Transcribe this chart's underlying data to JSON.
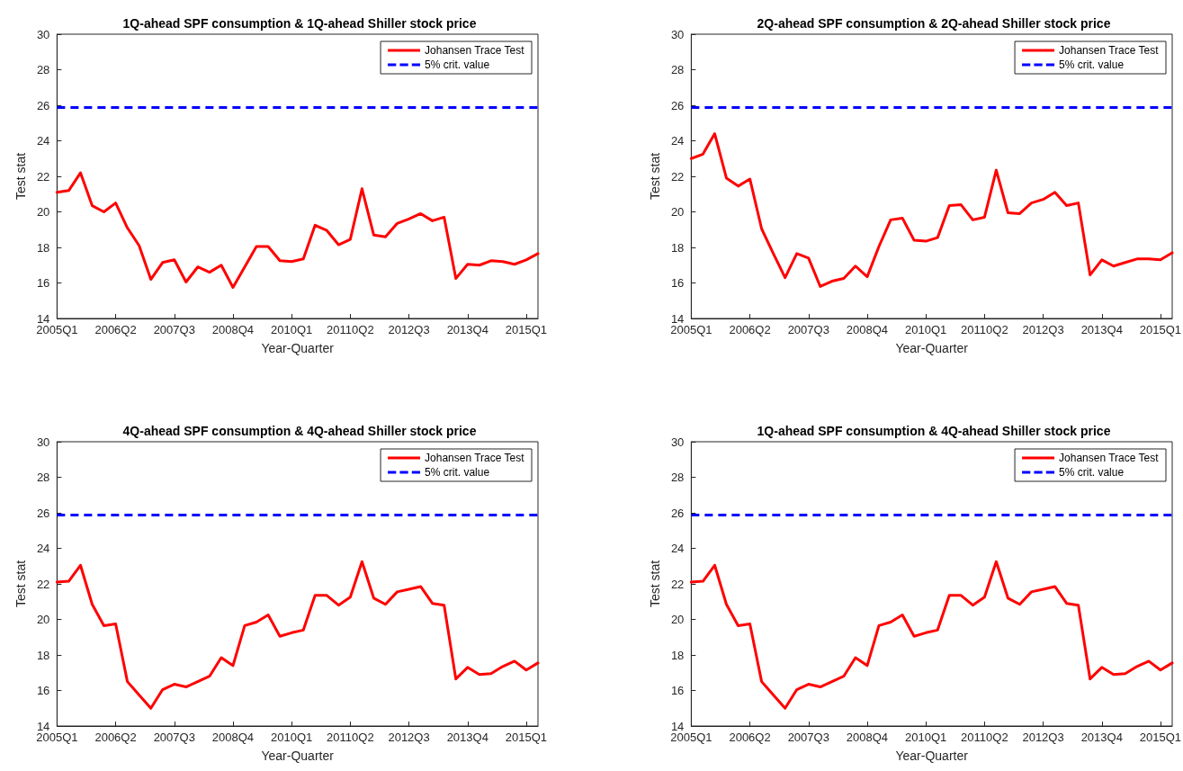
{
  "chart_data": [
    {
      "type": "line",
      "title": "1Q-ahead SPF consumption & 1Q-ahead Shiller stock price",
      "xlabel": "Year-Quarter",
      "ylabel": "Test stat",
      "ylim": [
        14,
        30
      ],
      "yticks": [
        14,
        16,
        18,
        20,
        22,
        24,
        26,
        28,
        30
      ],
      "grid": false,
      "legend": "top right",
      "categories": [
        "2005Q1",
        null,
        null,
        null,
        null,
        "2006Q2",
        null,
        null,
        null,
        null,
        "2007Q3",
        null,
        null,
        null,
        null,
        "2008Q4",
        null,
        null,
        null,
        null,
        "2010Q1",
        null,
        null,
        null,
        null,
        "20110Q2",
        null,
        null,
        null,
        null,
        "2012Q3",
        null,
        null,
        null,
        null,
        "2013Q4",
        null,
        null,
        null,
        null,
        "2015Q1",
        null
      ],
      "series": [
        {
          "name": "Johansen Trace Test",
          "color": "#ff0000",
          "line_style": "solid",
          "values": [
            21.1,
            21.2,
            22.2,
            20.35,
            20.0,
            20.5,
            19.1,
            18.1,
            16.2,
            17.15,
            17.3,
            16.05,
            16.9,
            16.6,
            17.0,
            15.75,
            16.9,
            18.05,
            18.05,
            17.25,
            17.2,
            17.35,
            19.25,
            18.95,
            18.15,
            18.45,
            21.3,
            18.7,
            18.6,
            19.35,
            19.6,
            19.9,
            19.5,
            19.7,
            16.25,
            17.05,
            17.0,
            17.25,
            17.2,
            17.05,
            17.3,
            17.65
          ]
        },
        {
          "name": "5% crit. value",
          "color": "#0000ff",
          "line_style": "dashed",
          "values": [
            25.87,
            25.87,
            25.87,
            25.87,
            25.87,
            25.87,
            25.87,
            25.87,
            25.87,
            25.87,
            25.87,
            25.87,
            25.87,
            25.87,
            25.87,
            25.87,
            25.87,
            25.87,
            25.87,
            25.87,
            25.87,
            25.87,
            25.87,
            25.87,
            25.87,
            25.87,
            25.87,
            25.87,
            25.87,
            25.87,
            25.87,
            25.87,
            25.87,
            25.87,
            25.87,
            25.87,
            25.87,
            25.87,
            25.87,
            25.87,
            25.87,
            25.87
          ]
        }
      ]
    },
    {
      "type": "line",
      "title": "2Q-ahead SPF consumption & 2Q-ahead Shiller stock price",
      "xlabel": "Year-Quarter",
      "ylabel": "Test stat",
      "ylim": [
        14,
        30
      ],
      "yticks": [
        14,
        16,
        18,
        20,
        22,
        24,
        26,
        28,
        30
      ],
      "grid": false,
      "legend": "top right",
      "categories": [
        "2005Q1",
        null,
        null,
        null,
        null,
        "2006Q2",
        null,
        null,
        null,
        null,
        "2007Q3",
        null,
        null,
        null,
        null,
        "2008Q4",
        null,
        null,
        null,
        null,
        "2010Q1",
        null,
        null,
        null,
        null,
        "20110Q2",
        null,
        null,
        null,
        null,
        "2012Q3",
        null,
        null,
        null,
        null,
        "2013Q4",
        null,
        null,
        null,
        null,
        "2015Q1",
        null
      ],
      "series": [
        {
          "name": "Johansen Trace Test",
          "color": "#ff0000",
          "line_style": "solid",
          "values": [
            23.0,
            23.25,
            24.4,
            21.9,
            21.45,
            21.85,
            19.05,
            17.65,
            16.3,
            17.65,
            17.4,
            15.8,
            16.1,
            16.25,
            16.95,
            16.35,
            18.05,
            19.55,
            19.65,
            18.4,
            18.35,
            18.55,
            20.35,
            20.4,
            19.55,
            19.7,
            22.35,
            19.95,
            19.9,
            20.5,
            20.7,
            21.1,
            20.35,
            20.5,
            16.45,
            17.3,
            16.95,
            17.15,
            17.35,
            17.35,
            17.3,
            17.7
          ]
        },
        {
          "name": "5% crit. value",
          "color": "#0000ff",
          "line_style": "dashed",
          "values": [
            25.87,
            25.87,
            25.87,
            25.87,
            25.87,
            25.87,
            25.87,
            25.87,
            25.87,
            25.87,
            25.87,
            25.87,
            25.87,
            25.87,
            25.87,
            25.87,
            25.87,
            25.87,
            25.87,
            25.87,
            25.87,
            25.87,
            25.87,
            25.87,
            25.87,
            25.87,
            25.87,
            25.87,
            25.87,
            25.87,
            25.87,
            25.87,
            25.87,
            25.87,
            25.87,
            25.87,
            25.87,
            25.87,
            25.87,
            25.87,
            25.87,
            25.87
          ]
        }
      ]
    },
    {
      "type": "line",
      "title": "4Q-ahead SPF consumption & 4Q-ahead Shiller stock price",
      "xlabel": "Year-Quarter",
      "ylabel": "Test stat",
      "ylim": [
        14,
        30
      ],
      "yticks": [
        14,
        16,
        18,
        20,
        22,
        24,
        26,
        28,
        30
      ],
      "grid": false,
      "legend": "top right",
      "categories": [
        "2005Q1",
        null,
        null,
        null,
        null,
        "2006Q2",
        null,
        null,
        null,
        null,
        "2007Q3",
        null,
        null,
        null,
        null,
        "2008Q4",
        null,
        null,
        null,
        null,
        "2010Q1",
        null,
        null,
        null,
        null,
        "20110Q2",
        null,
        null,
        null,
        null,
        "2012Q3",
        null,
        null,
        null,
        null,
        "2013Q4",
        null,
        null,
        null,
        null,
        "2015Q1",
        null
      ],
      "series": [
        {
          "name": "Johansen Trace Test",
          "color": "#ff0000",
          "line_style": "solid",
          "values": [
            22.1,
            22.15,
            23.05,
            20.85,
            19.65,
            19.75,
            16.5,
            15.75,
            15.0,
            16.05,
            16.35,
            16.2,
            16.5,
            16.8,
            17.85,
            17.4,
            19.65,
            19.85,
            20.25,
            19.05,
            19.25,
            19.4,
            21.35,
            21.35,
            20.8,
            21.25,
            23.25,
            21.2,
            20.85,
            21.55,
            21.7,
            21.85,
            20.9,
            20.8,
            16.65,
            17.3,
            16.9,
            16.95,
            17.35,
            17.65,
            17.15,
            17.55
          ]
        },
        {
          "name": "5% crit. value",
          "color": "#0000ff",
          "line_style": "dashed",
          "values": [
            25.87,
            25.87,
            25.87,
            25.87,
            25.87,
            25.87,
            25.87,
            25.87,
            25.87,
            25.87,
            25.87,
            25.87,
            25.87,
            25.87,
            25.87,
            25.87,
            25.87,
            25.87,
            25.87,
            25.87,
            25.87,
            25.87,
            25.87,
            25.87,
            25.87,
            25.87,
            25.87,
            25.87,
            25.87,
            25.87,
            25.87,
            25.87,
            25.87,
            25.87,
            25.87,
            25.87,
            25.87,
            25.87,
            25.87,
            25.87,
            25.87,
            25.87
          ]
        }
      ]
    },
    {
      "type": "line",
      "title": "1Q-ahead SPF consumption & 4Q-ahead Shiller stock price",
      "xlabel": "Year-Quarter",
      "ylabel": "Test stat",
      "ylim": [
        14,
        30
      ],
      "yticks": [
        14,
        16,
        18,
        20,
        22,
        24,
        26,
        28,
        30
      ],
      "grid": false,
      "legend": "top right",
      "categories": [
        "2005Q1",
        null,
        null,
        null,
        null,
        "2006Q2",
        null,
        null,
        null,
        null,
        "2007Q3",
        null,
        null,
        null,
        null,
        "2008Q4",
        null,
        null,
        null,
        null,
        "2010Q1",
        null,
        null,
        null,
        null,
        "20110Q2",
        null,
        null,
        null,
        null,
        "2012Q3",
        null,
        null,
        null,
        null,
        "2013Q4",
        null,
        null,
        null,
        null,
        "2015Q1",
        null
      ],
      "series": [
        {
          "name": "Johansen Trace Test",
          "color": "#ff0000",
          "line_style": "solid",
          "values": [
            22.1,
            22.15,
            23.05,
            20.85,
            19.65,
            19.75,
            16.5,
            15.75,
            15.0,
            16.05,
            16.35,
            16.2,
            16.5,
            16.8,
            17.85,
            17.4,
            19.65,
            19.85,
            20.25,
            19.05,
            19.25,
            19.4,
            21.35,
            21.35,
            20.8,
            21.25,
            23.25,
            21.2,
            20.85,
            21.55,
            21.7,
            21.85,
            20.9,
            20.8,
            16.65,
            17.3,
            16.9,
            16.95,
            17.35,
            17.65,
            17.15,
            17.55
          ]
        },
        {
          "name": "5% crit. value",
          "color": "#0000ff",
          "line_style": "dashed",
          "values": [
            25.87,
            25.87,
            25.87,
            25.87,
            25.87,
            25.87,
            25.87,
            25.87,
            25.87,
            25.87,
            25.87,
            25.87,
            25.87,
            25.87,
            25.87,
            25.87,
            25.87,
            25.87,
            25.87,
            25.87,
            25.87,
            25.87,
            25.87,
            25.87,
            25.87,
            25.87,
            25.87,
            25.87,
            25.87,
            25.87,
            25.87,
            25.87,
            25.87,
            25.87,
            25.87,
            25.87,
            25.87,
            25.87,
            25.87,
            25.87,
            25.87,
            25.87
          ]
        }
      ]
    }
  ]
}
